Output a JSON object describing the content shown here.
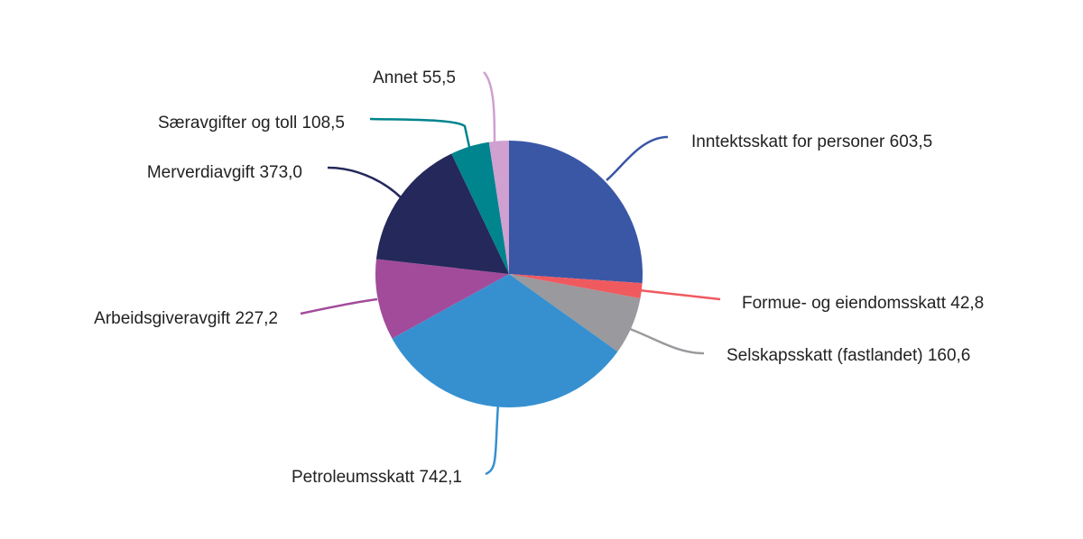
{
  "chart_data": {
    "type": "pie",
    "title": "",
    "start_angle_deg": 0,
    "direction": "clockwise",
    "slices": [
      {
        "label": "Inntektsskatt for personer",
        "value": 603.5,
        "value_text": "603,5",
        "color": "#3a57a6"
      },
      {
        "label": "Formue- og eiendomsskatt",
        "value": 42.8,
        "value_text": "42,8",
        "color": "#ef5a5f"
      },
      {
        "label": "Selskapsskatt (fastlandet)",
        "value": 160.6,
        "value_text": "160,6",
        "color": "#9a999d"
      },
      {
        "label": "Petroleumsskatt",
        "value": 742.1,
        "value_text": "742,1",
        "color": "#3690d0"
      },
      {
        "label": "Arbeidsgiveravgift",
        "value": 227.2,
        "value_text": "227,2",
        "color": "#a24b9b"
      },
      {
        "label": "Merverdiavgift",
        "value": 373.0,
        "value_text": "373,0",
        "color": "#24285a"
      },
      {
        "label": "Særavgifter og toll",
        "value": 108.5,
        "value_text": "108,5",
        "color": "#00848d"
      },
      {
        "label": "Annet",
        "value": 55.5,
        "value_text": "55,5",
        "color": "#cfa0d0"
      }
    ]
  }
}
